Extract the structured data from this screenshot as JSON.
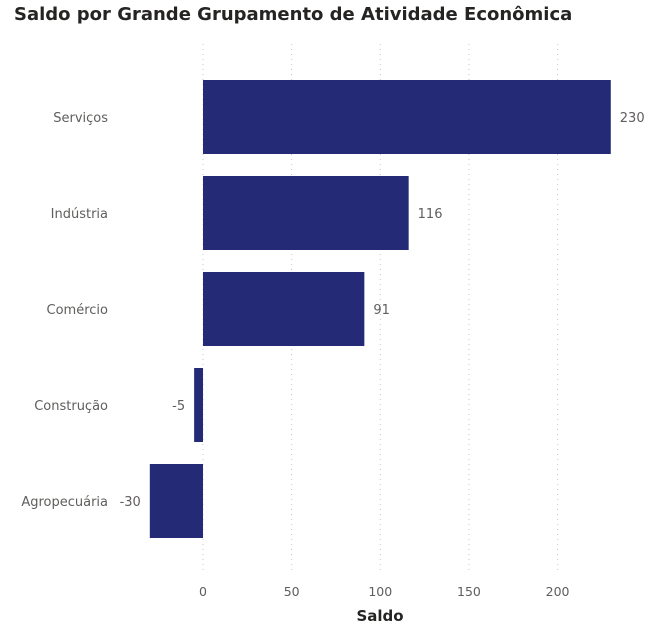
{
  "chart_data": {
    "type": "bar",
    "orientation": "horizontal",
    "title": "Saldo por Grande Grupamento de Atividade Econômica",
    "xlabel": "Saldo",
    "ylabel": "",
    "categories": [
      "Serviços",
      "Indústria",
      "Comércio",
      "Construção",
      "Agropecuária"
    ],
    "values": [
      230,
      116,
      91,
      -5,
      -30
    ],
    "data_labels": [
      "230",
      "116",
      "91",
      "-5",
      "-30"
    ],
    "xlim": [
      -35,
      235
    ],
    "x_ticks": [
      0,
      50,
      100,
      150,
      200
    ],
    "x_tick_labels": [
      "0",
      "50",
      "100",
      "150",
      "200"
    ],
    "grid": true,
    "bar_color": "#252a77"
  }
}
